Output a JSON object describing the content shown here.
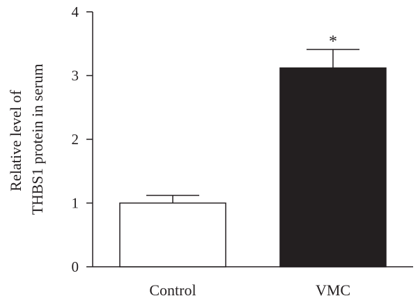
{
  "chart_data": {
    "type": "bar",
    "categories": [
      "Control",
      "VMC"
    ],
    "values": [
      1.0,
      3.12
    ],
    "error_upper": [
      1.12,
      3.41
    ],
    "bar_colors": [
      "#ffffff",
      "#231f20"
    ],
    "edge_color": "#231f20",
    "annotations": [
      "",
      "*"
    ],
    "ylabel_lines": [
      "Relative level of",
      "THBS1 protein in serum"
    ],
    "ylim": [
      0,
      4
    ],
    "yticks": [
      "0",
      "1",
      "2",
      "3",
      "4"
    ],
    "grid": false,
    "legend": "none"
  }
}
